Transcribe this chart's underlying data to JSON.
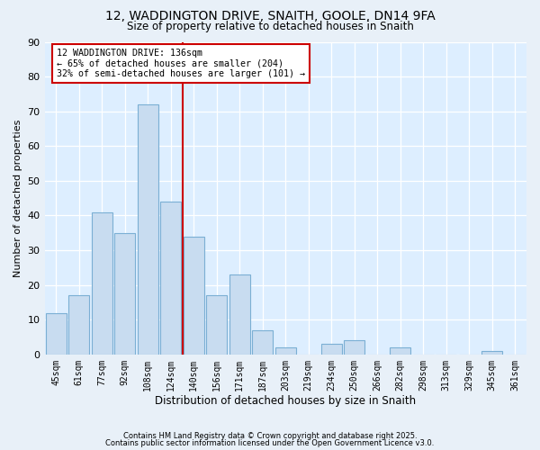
{
  "title1": "12, WADDINGTON DRIVE, SNAITH, GOOLE, DN14 9FA",
  "title2": "Size of property relative to detached houses in Snaith",
  "xlabel": "Distribution of detached houses by size in Snaith",
  "ylabel": "Number of detached properties",
  "bar_labels": [
    "45sqm",
    "61sqm",
    "77sqm",
    "92sqm",
    "108sqm",
    "124sqm",
    "140sqm",
    "156sqm",
    "171sqm",
    "187sqm",
    "203sqm",
    "219sqm",
    "234sqm",
    "250sqm",
    "266sqm",
    "282sqm",
    "298sqm",
    "313sqm",
    "329sqm",
    "345sqm",
    "361sqm"
  ],
  "bar_values": [
    12,
    17,
    41,
    35,
    72,
    44,
    34,
    17,
    23,
    7,
    2,
    0,
    3,
    4,
    0,
    2,
    0,
    0,
    0,
    1,
    0
  ],
  "bar_color": "#c8dcf0",
  "bar_edge_color": "#7bafd4",
  "vline_x": 5.5,
  "vline_color": "#cc0000",
  "annotation_line1": "12 WADDINGTON DRIVE: 136sqm",
  "annotation_line2": "← 65% of detached houses are smaller (204)",
  "annotation_line3": "32% of semi-detached houses are larger (101) →",
  "ylim": [
    0,
    90
  ],
  "yticks": [
    0,
    10,
    20,
    30,
    40,
    50,
    60,
    70,
    80,
    90
  ],
  "footer1": "Contains HM Land Registry data © Crown copyright and database right 2025.",
  "footer2": "Contains public sector information licensed under the Open Government Licence v3.0.",
  "bg_color": "#e8f0f8",
  "plot_bg_color": "#ddeeff"
}
